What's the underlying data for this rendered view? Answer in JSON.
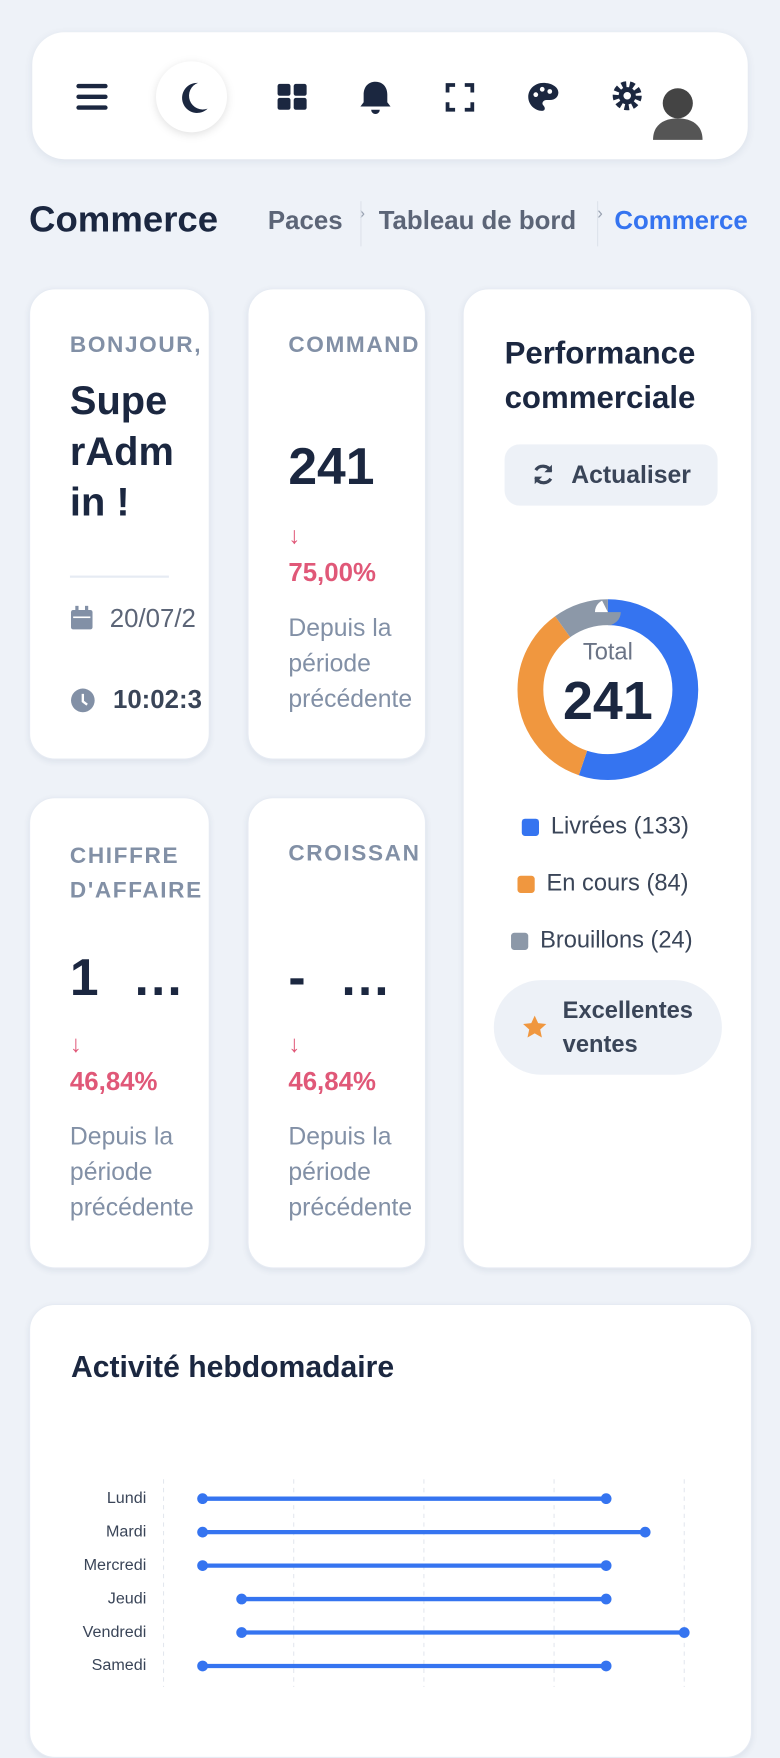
{
  "header": {
    "title": "Commerce",
    "breadcrumb": [
      "Paces",
      "Tableau de bord",
      "Commerce"
    ]
  },
  "welcome": {
    "greeting": "BONJOUR,",
    "name": "SuperAdmin !",
    "date": "20/07/2",
    "time": "10:02:3"
  },
  "cards": [
    {
      "title": "COMMAND",
      "value": "241",
      "change": "75,00%",
      "note": "Depuis la période précédente"
    },
    {
      "title": "CHIFFRE D'AFFAIRE",
      "value": "1 …",
      "change": "46,84%",
      "note": "Depuis la période précédente"
    },
    {
      "title": "CROISSAN",
      "value": "- …",
      "change": "46,84%",
      "note": "Depuis la période précédente"
    }
  ],
  "performance": {
    "title": "Performance commerciale",
    "button": "Actualiser",
    "chart_data": {
      "type": "donut",
      "center_label": "Total",
      "total": 241,
      "values": [
        133,
        84,
        24
      ],
      "colors": [
        "#3574f0",
        "#f0973f",
        "#8c98a8"
      ],
      "legend": [
        "Livrées (133)",
        "En cours (84)",
        "Brouillons (24)"
      ]
    },
    "badge": "Excellentes ventes"
  },
  "weekly": {
    "title": "Activité hebdomadaire",
    "chart_data": {
      "type": "dumbbell",
      "categories": [
        "Lundi",
        "Mardi",
        "Mercredi",
        "Jeudi",
        "Vendredi",
        "Samedi"
      ],
      "starts": [
        0.3,
        0.3,
        0.3,
        0.6,
        0.6,
        0.3
      ],
      "ends": [
        3.4,
        3.7,
        3.4,
        3.4,
        4.0,
        3.4
      ],
      "color": "#3574f0",
      "xlim": [
        0,
        4
      ],
      "xticks": [
        0,
        1,
        2,
        3,
        4
      ],
      "grid": true
    }
  }
}
